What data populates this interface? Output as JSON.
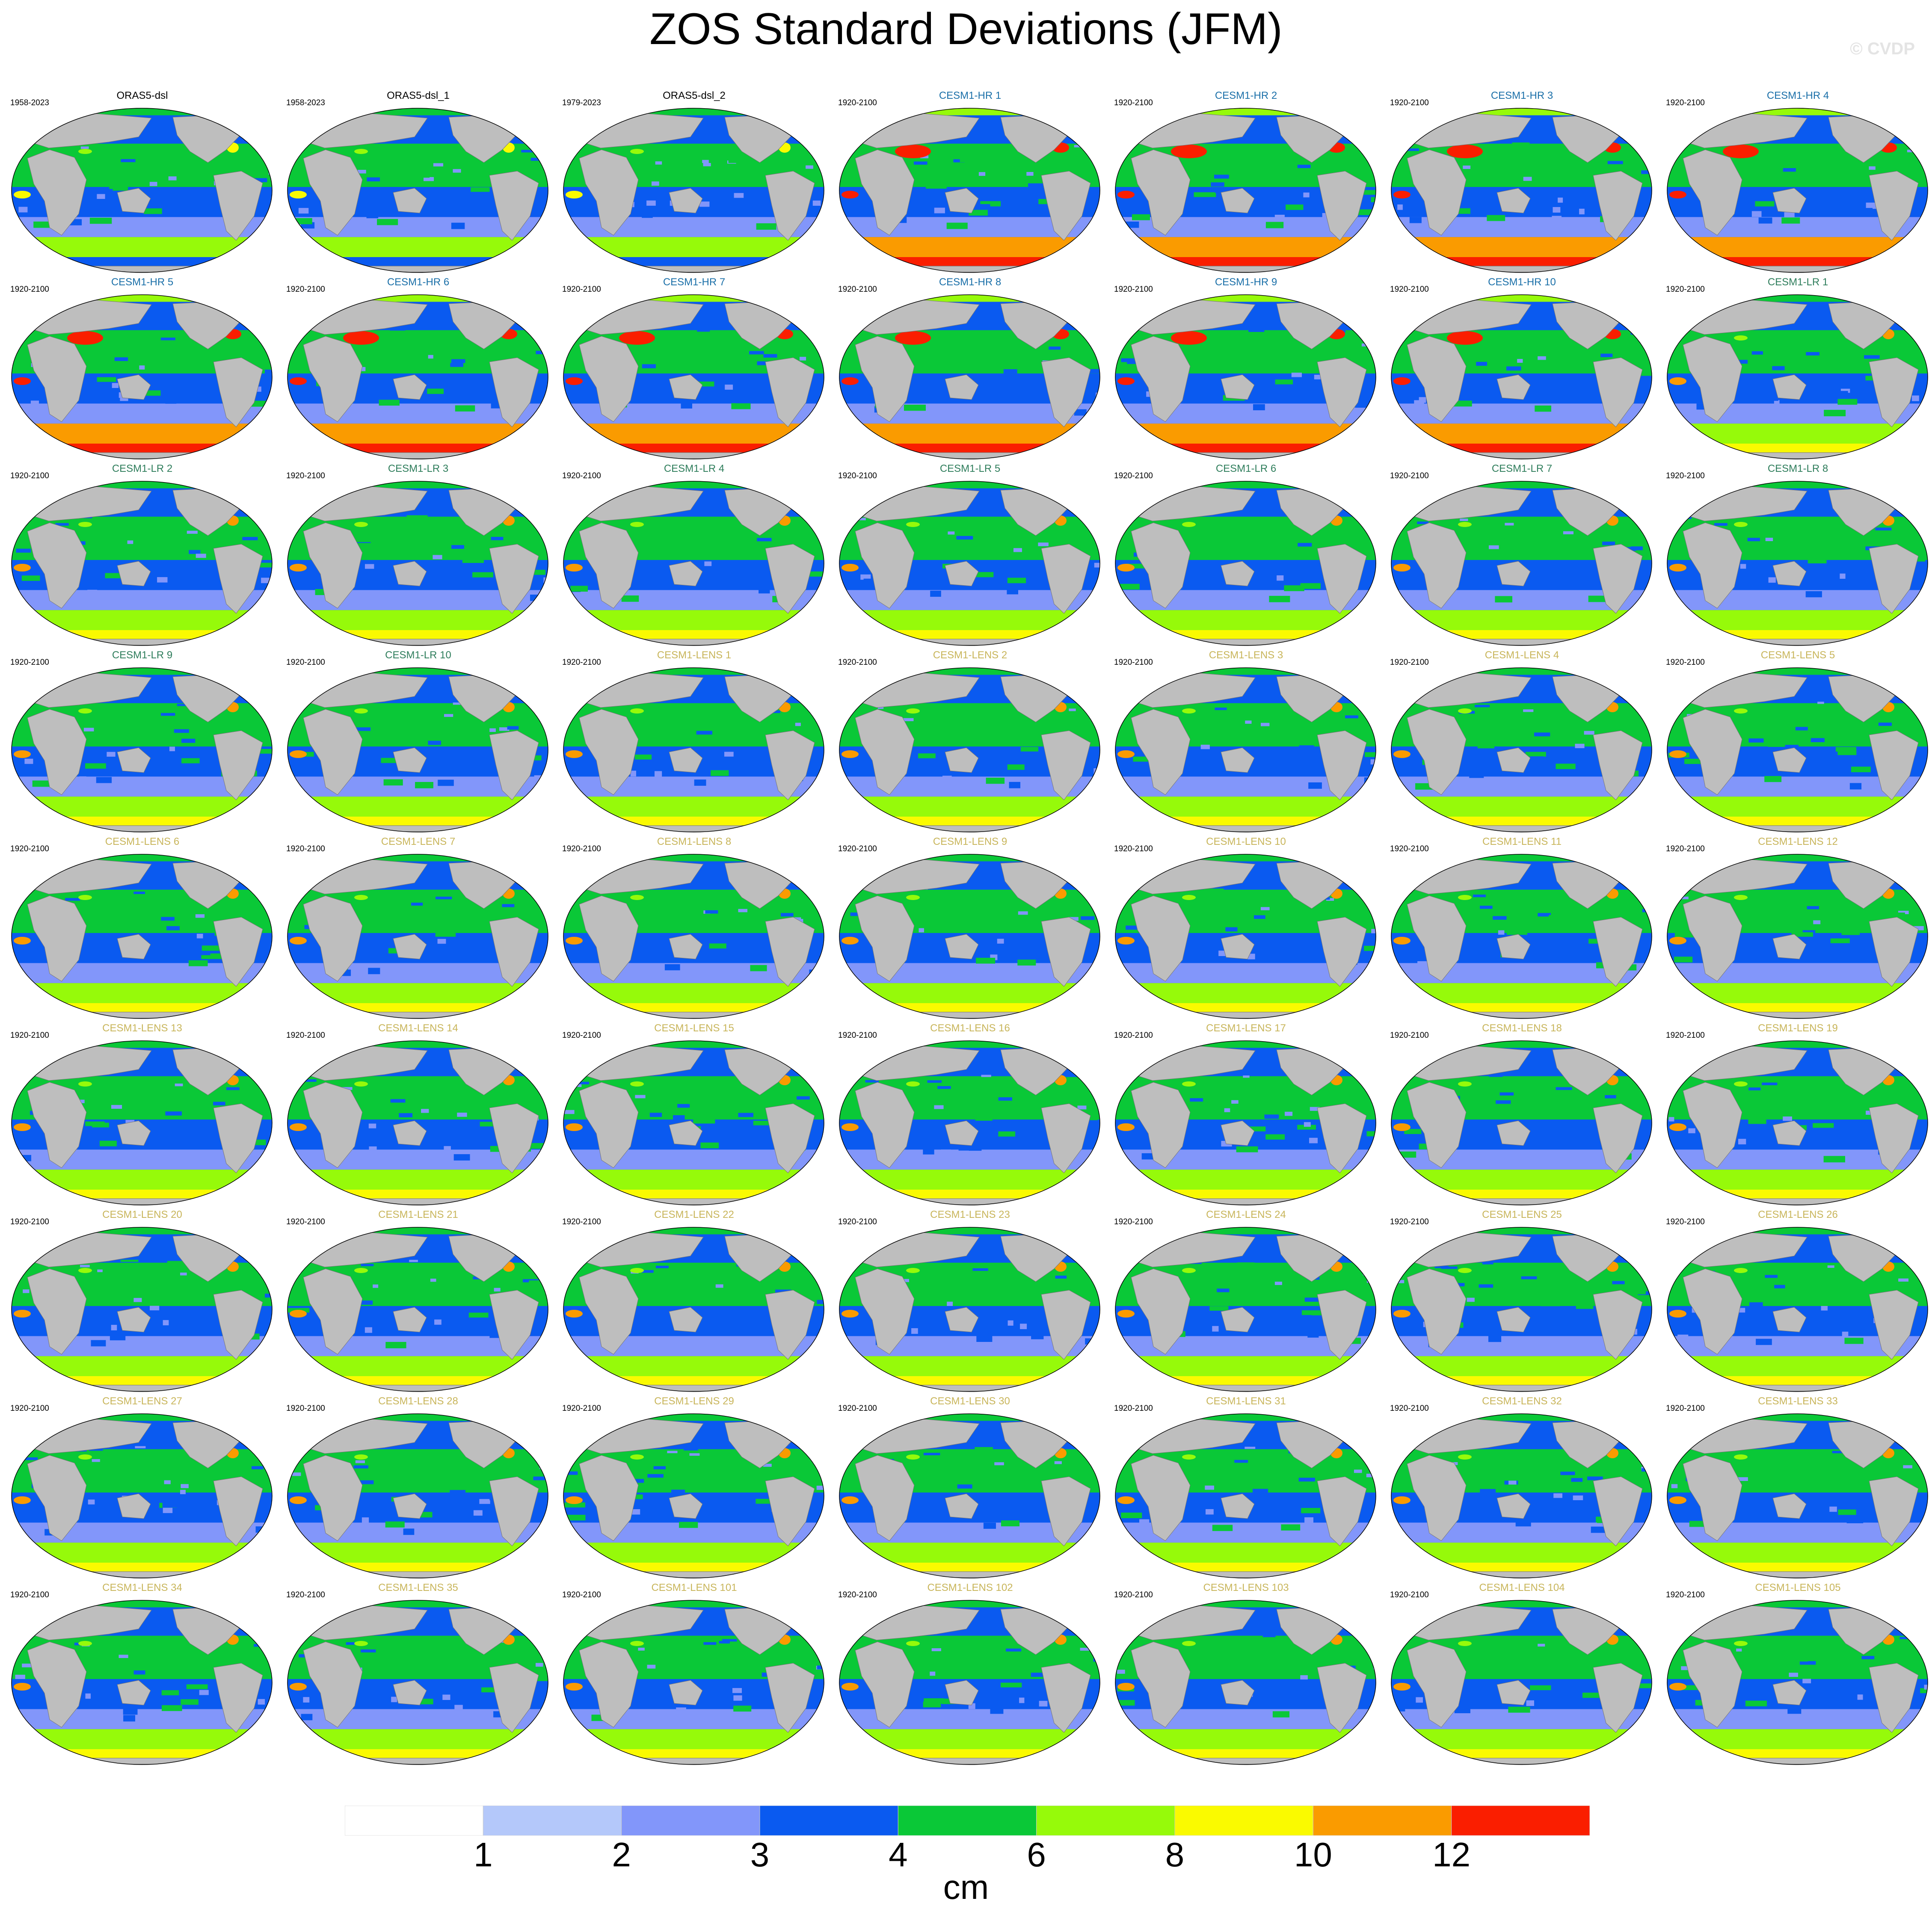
{
  "header": {
    "title": "ZOS Standard Deviations (JFM)",
    "credit": "© CVDP"
  },
  "chart_data": {
    "type": "heatmap",
    "title": "ZOS Standard Deviations (JFM)",
    "projection": "global map panels (Robinson-like ellipse), land masked grey",
    "layout": {
      "rows": 9,
      "columns": 7,
      "order": "row-major"
    },
    "group_colors": {
      "ORAS5": "#000000",
      "CESM1-HR": "#1a6fa8",
      "CESM1-LR": "#2e7d5b",
      "CESM1-LENS": "#c8b55a"
    },
    "panels": [
      {
        "title": "ORAS5-dsl",
        "period": "1958-2023",
        "group": "ORAS5"
      },
      {
        "title": "ORAS5-dsl_1",
        "period": "1958-2023",
        "group": "ORAS5"
      },
      {
        "title": "ORAS5-dsl_2",
        "period": "1979-2023",
        "group": "ORAS5"
      },
      {
        "title": "CESM1-HR 1",
        "period": "1920-2100",
        "group": "CESM1-HR"
      },
      {
        "title": "CESM1-HR 2",
        "period": "1920-2100",
        "group": "CESM1-HR"
      },
      {
        "title": "CESM1-HR 3",
        "period": "1920-2100",
        "group": "CESM1-HR"
      },
      {
        "title": "CESM1-HR 4",
        "period": "1920-2100",
        "group": "CESM1-HR"
      },
      {
        "title": "CESM1-HR 5",
        "period": "1920-2100",
        "group": "CESM1-HR"
      },
      {
        "title": "CESM1-HR 6",
        "period": "1920-2100",
        "group": "CESM1-HR"
      },
      {
        "title": "CESM1-HR 7",
        "period": "1920-2100",
        "group": "CESM1-HR"
      },
      {
        "title": "CESM1-HR 8",
        "period": "1920-2100",
        "group": "CESM1-HR"
      },
      {
        "title": "CESM1-HR 9",
        "period": "1920-2100",
        "group": "CESM1-HR"
      },
      {
        "title": "CESM1-HR 10",
        "period": "1920-2100",
        "group": "CESM1-HR"
      },
      {
        "title": "CESM1-LR 1",
        "period": "1920-2100",
        "group": "CESM1-LR"
      },
      {
        "title": "CESM1-LR 2",
        "period": "1920-2100",
        "group": "CESM1-LR"
      },
      {
        "title": "CESM1-LR 3",
        "period": "1920-2100",
        "group": "CESM1-LR"
      },
      {
        "title": "CESM1-LR 4",
        "period": "1920-2100",
        "group": "CESM1-LR"
      },
      {
        "title": "CESM1-LR 5",
        "period": "1920-2100",
        "group": "CESM1-LR"
      },
      {
        "title": "CESM1-LR 6",
        "period": "1920-2100",
        "group": "CESM1-LR"
      },
      {
        "title": "CESM1-LR 7",
        "period": "1920-2100",
        "group": "CESM1-LR"
      },
      {
        "title": "CESM1-LR 8",
        "period": "1920-2100",
        "group": "CESM1-LR"
      },
      {
        "title": "CESM1-LR 9",
        "period": "1920-2100",
        "group": "CESM1-LR"
      },
      {
        "title": "CESM1-LR 10",
        "period": "1920-2100",
        "group": "CESM1-LR"
      },
      {
        "title": "CESM1-LENS 1",
        "period": "1920-2100",
        "group": "CESM1-LENS"
      },
      {
        "title": "CESM1-LENS 2",
        "period": "1920-2100",
        "group": "CESM1-LENS"
      },
      {
        "title": "CESM1-LENS 3",
        "period": "1920-2100",
        "group": "CESM1-LENS"
      },
      {
        "title": "CESM1-LENS 4",
        "period": "1920-2100",
        "group": "CESM1-LENS"
      },
      {
        "title": "CESM1-LENS 5",
        "period": "1920-2100",
        "group": "CESM1-LENS"
      },
      {
        "title": "CESM1-LENS 6",
        "period": "1920-2100",
        "group": "CESM1-LENS"
      },
      {
        "title": "CESM1-LENS 7",
        "period": "1920-2100",
        "group": "CESM1-LENS"
      },
      {
        "title": "CESM1-LENS 8",
        "period": "1920-2100",
        "group": "CESM1-LENS"
      },
      {
        "title": "CESM1-LENS 9",
        "period": "1920-2100",
        "group": "CESM1-LENS"
      },
      {
        "title": "CESM1-LENS 10",
        "period": "1920-2100",
        "group": "CESM1-LENS"
      },
      {
        "title": "CESM1-LENS 11",
        "period": "1920-2100",
        "group": "CESM1-LENS"
      },
      {
        "title": "CESM1-LENS 12",
        "period": "1920-2100",
        "group": "CESM1-LENS"
      },
      {
        "title": "CESM1-LENS 13",
        "period": "1920-2100",
        "group": "CESM1-LENS"
      },
      {
        "title": "CESM1-LENS 14",
        "period": "1920-2100",
        "group": "CESM1-LENS"
      },
      {
        "title": "CESM1-LENS 15",
        "period": "1920-2100",
        "group": "CESM1-LENS"
      },
      {
        "title": "CESM1-LENS 16",
        "period": "1920-2100",
        "group": "CESM1-LENS"
      },
      {
        "title": "CESM1-LENS 17",
        "period": "1920-2100",
        "group": "CESM1-LENS"
      },
      {
        "title": "CESM1-LENS 18",
        "period": "1920-2100",
        "group": "CESM1-LENS"
      },
      {
        "title": "CESM1-LENS 19",
        "period": "1920-2100",
        "group": "CESM1-LENS"
      },
      {
        "title": "CESM1-LENS 20",
        "period": "1920-2100",
        "group": "CESM1-LENS"
      },
      {
        "title": "CESM1-LENS 21",
        "period": "1920-2100",
        "group": "CESM1-LENS"
      },
      {
        "title": "CESM1-LENS 22",
        "period": "1920-2100",
        "group": "CESM1-LENS"
      },
      {
        "title": "CESM1-LENS 23",
        "period": "1920-2100",
        "group": "CESM1-LENS"
      },
      {
        "title": "CESM1-LENS 24",
        "period": "1920-2100",
        "group": "CESM1-LENS"
      },
      {
        "title": "CESM1-LENS 25",
        "period": "1920-2100",
        "group": "CESM1-LENS"
      },
      {
        "title": "CESM1-LENS 26",
        "period": "1920-2100",
        "group": "CESM1-LENS"
      },
      {
        "title": "CESM1-LENS 27",
        "period": "1920-2100",
        "group": "CESM1-LENS"
      },
      {
        "title": "CESM1-LENS 28",
        "period": "1920-2100",
        "group": "CESM1-LENS"
      },
      {
        "title": "CESM1-LENS 29",
        "period": "1920-2100",
        "group": "CESM1-LENS"
      },
      {
        "title": "CESM1-LENS 30",
        "period": "1920-2100",
        "group": "CESM1-LENS"
      },
      {
        "title": "CESM1-LENS 31",
        "period": "1920-2100",
        "group": "CESM1-LENS"
      },
      {
        "title": "CESM1-LENS 32",
        "period": "1920-2100",
        "group": "CESM1-LENS"
      },
      {
        "title": "CESM1-LENS 33",
        "period": "1920-2100",
        "group": "CESM1-LENS"
      },
      {
        "title": "CESM1-LENS 34",
        "period": "1920-2100",
        "group": "CESM1-LENS"
      },
      {
        "title": "CESM1-LENS 35",
        "period": "1920-2100",
        "group": "CESM1-LENS"
      },
      {
        "title": "CESM1-LENS 101",
        "period": "1920-2100",
        "group": "CESM1-LENS"
      },
      {
        "title": "CESM1-LENS 102",
        "period": "1920-2100",
        "group": "CESM1-LENS"
      },
      {
        "title": "CESM1-LENS 103",
        "period": "1920-2100",
        "group": "CESM1-LENS"
      },
      {
        "title": "CESM1-LENS 104",
        "period": "1920-2100",
        "group": "CESM1-LENS"
      },
      {
        "title": "CESM1-LENS 105",
        "period": "1920-2100",
        "group": "CESM1-LENS"
      }
    ],
    "colorbar": {
      "levels": [
        1,
        2,
        3,
        4,
        6,
        8,
        10,
        12
      ],
      "tick_labels": [
        "1",
        "2",
        "3",
        "4",
        "6",
        "8",
        "10",
        "12"
      ],
      "colors": [
        "#ffffff",
        "#b4c8fa",
        "#8296fa",
        "#0a5af0",
        "#0ac837",
        "#96fa0a",
        "#fafa00",
        "#fa9b00",
        "#fa1e00"
      ],
      "unit": "cm"
    },
    "map_colors": {
      "land": "#bebebe",
      "outline": "#000000"
    }
  }
}
